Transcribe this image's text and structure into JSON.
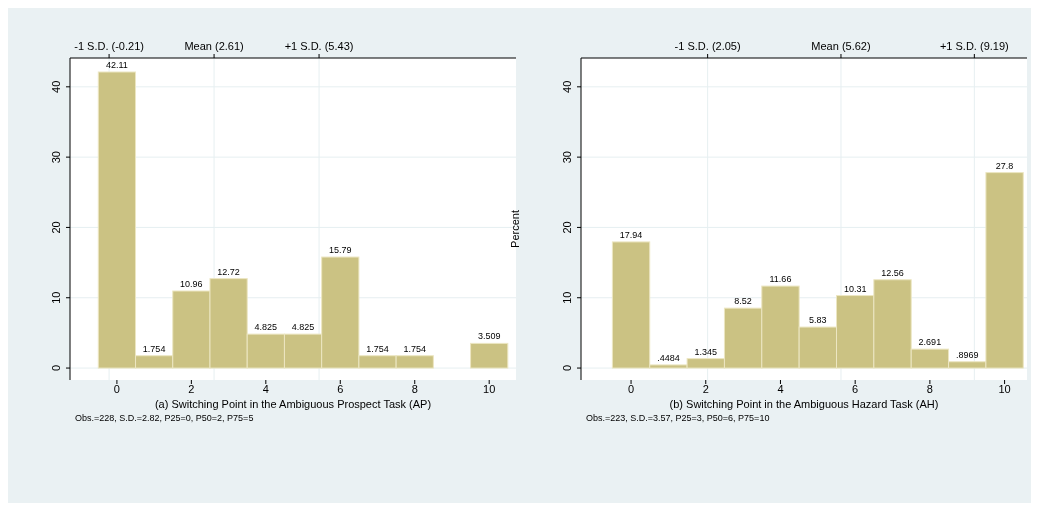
{
  "chart_data": [
    {
      "type": "histogram",
      "bins": [
        -0.5,
        0.5,
        1.5,
        2.5,
        3.5,
        4.5,
        5.5,
        6.5,
        7.5,
        8.5,
        9.5,
        10.5
      ],
      "values": [
        42.11,
        1.754,
        10.96,
        12.72,
        4.825,
        4.825,
        15.79,
        1.754,
        1.754,
        0,
        3.509
      ],
      "value_labels": [
        "42.11",
        "1.754",
        "10.96",
        "12.72",
        "4.825",
        "4.825",
        "15.79",
        "1.754",
        "1.754",
        null,
        "3.509"
      ],
      "color": "#cbc283",
      "xlim": [
        -1.26,
        10.72
      ],
      "xticks": [
        0,
        2,
        4,
        6,
        8,
        10
      ],
      "ref_lines": [
        {
          "axis": "x",
          "value": -0.21,
          "label": "-1 S.D. (-0.21)",
          "color": "#e6eff1"
        },
        {
          "axis": "x",
          "value": 2.61,
          "label": "Mean (2.61)",
          "color": "#e6eff1"
        },
        {
          "axis": "x",
          "value": 5.43,
          "label": "+1 S.D. (5.43)",
          "color": "#e6eff1"
        }
      ],
      "ylim": [
        -1.7,
        44.1
      ],
      "yticks": [
        0,
        10,
        20,
        30,
        40
      ],
      "grid": true,
      "xlabel": "(a) Switching Point in the Ambiguous Prospect Task (AP)",
      "annotations": [
        "Obs.=228, S.D.=2.82, P25=0, P50=2, P75=5"
      ]
    },
    {
      "type": "histogram",
      "bins": [
        -0.5,
        0.5,
        1.5,
        2.5,
        3.5,
        4.5,
        5.5,
        6.5,
        7.5,
        8.5,
        9.5,
        10.5
      ],
      "values": [
        17.94,
        0.4484,
        1.345,
        8.52,
        11.66,
        5.83,
        10.31,
        12.56,
        2.691,
        0.8969,
        27.8
      ],
      "value_labels": [
        "17.94",
        ".4484",
        "1.345",
        "8.52",
        "11.66",
        "5.83",
        "10.31",
        "12.56",
        "2.691",
        ".8969",
        "27.8"
      ],
      "color": "#cbc283",
      "xlim": [
        -1.34,
        10.6
      ],
      "xticks": [
        0,
        2,
        4,
        6,
        8,
        10
      ],
      "ref_lines": [
        {
          "axis": "x",
          "value": 2.05,
          "label": "-1 S.D. (2.05)",
          "color": "#e6eff1"
        },
        {
          "axis": "x",
          "value": 5.62,
          "label": "Mean (5.62)",
          "color": "#e6eff1"
        },
        {
          "axis": "x",
          "value": 9.19,
          "label": "+1 S.D. (9.19)",
          "color": "#e6eff1"
        }
      ],
      "ylim": [
        -1.7,
        44.1
      ],
      "yticks": [
        0,
        10,
        20,
        30,
        40
      ],
      "grid": true,
      "xlabel": "(b) Switching Point in the Ambiguous Hazard Task (AH)",
      "ylabel": "Percent",
      "annotations": [
        "Obs.=223, S.D.=3.57, P25=3, P50=6, P75=10"
      ]
    }
  ]
}
